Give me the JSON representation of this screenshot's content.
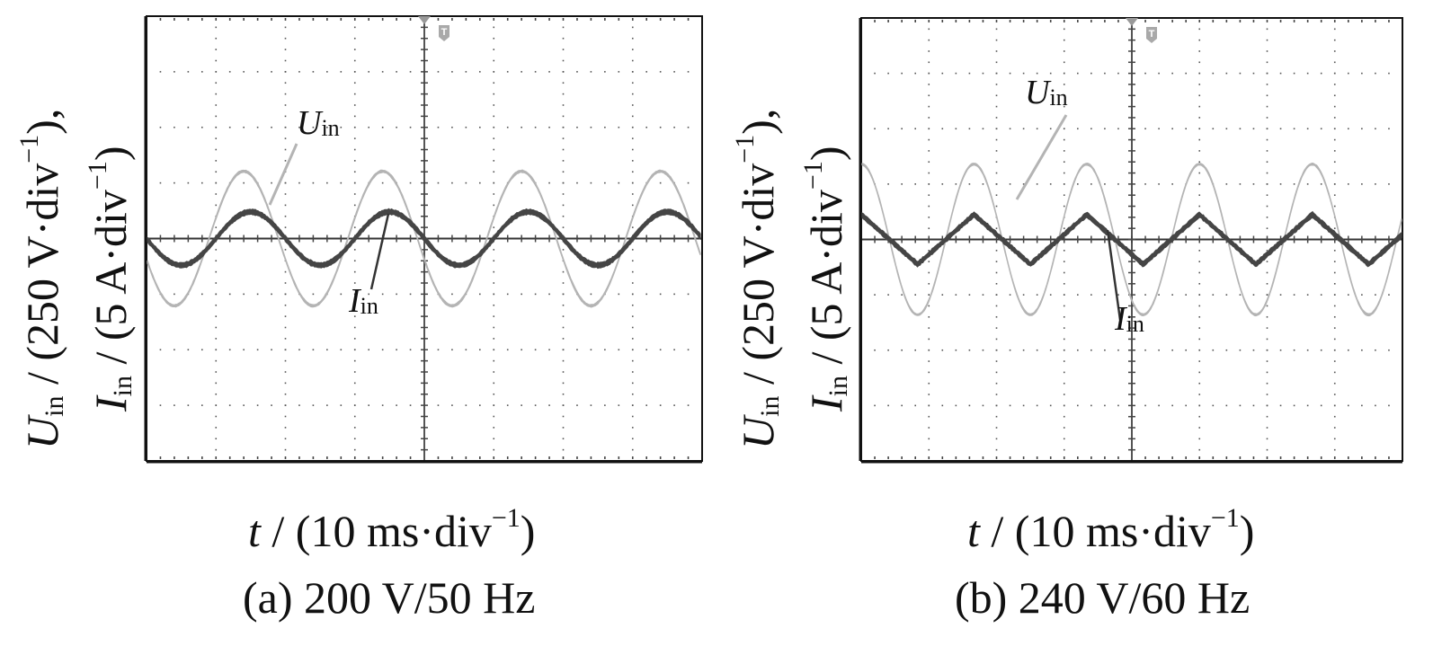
{
  "chart_data": [
    {
      "id": "a",
      "type": "line",
      "title": "",
      "caption": "(a)  200 V/50 Hz",
      "xlabel": {
        "var": "t",
        "rest": " / (10 ms·div",
        "sup": "−1",
        "close": ")"
      },
      "ylabel_1": {
        "var": "U",
        "sub": "in",
        "rest": " / (250 V·div",
        "sup": "−1",
        "close": "),",
        "close_main": ")"
      },
      "ylabel_2": {
        "var": "I",
        "sub": "in",
        "rest": " / (5 A·div",
        "sup": "−1",
        "close": ")"
      },
      "grid": true,
      "divisions": {
        "x": 8,
        "y": 8
      },
      "x_range_div": [
        -4,
        4
      ],
      "y_range_div": [
        -4,
        4
      ],
      "trigger_marker": "T",
      "series": [
        {
          "name": "Uin",
          "label_var": "U",
          "label_sub": "in",
          "color": "#b4b4b4",
          "waveform": "sine",
          "amplitude_div": 1.21,
          "frequency_hz": 50,
          "time_per_div_ms": 10,
          "phase_deg": 198,
          "noise_div": 0.05
        },
        {
          "name": "Iin",
          "label_var": "I",
          "label_sub": "in",
          "color": "#454545",
          "waveform": "sine",
          "amplitude_div": 0.48,
          "frequency_hz": 50,
          "time_per_div_ms": 10,
          "phase_deg": 180,
          "noise_div": 0.11
        }
      ]
    },
    {
      "id": "b",
      "type": "line",
      "title": "",
      "caption": "(b)  240 V/60 Hz",
      "xlabel": {
        "var": "t",
        "rest": " / (10 ms·div",
        "sup": "−1",
        "close": ")"
      },
      "ylabel_1": {
        "var": "U",
        "sub": "in",
        "rest": " / (250 V·div",
        "sup": "−1",
        "close": "),",
        "close_main": ")"
      },
      "ylabel_2": {
        "var": "I",
        "sub": "in",
        "rest": " / (5 A·div",
        "sup": "−1",
        "close": ")"
      },
      "grid": true,
      "divisions": {
        "x": 8,
        "y": 8
      },
      "x_range_div": [
        -4,
        4
      ],
      "y_range_div": [
        -4,
        4
      ],
      "trigger_marker": "T",
      "series": [
        {
          "name": "Uin",
          "label_var": "U",
          "label_sub": "in",
          "color": "#b4b4b4",
          "waveform": "sine",
          "amplitude_div": 1.36,
          "frequency_hz": 60,
          "time_per_div_ms": 10,
          "phase_deg": 90,
          "noise_div": 0.04
        },
        {
          "name": "Iin",
          "label_var": "I",
          "label_sub": "in",
          "color": "#454545",
          "waveform": "triangle",
          "amplitude_div": 0.45,
          "frequency_hz": 60,
          "time_per_div_ms": 10,
          "phase_deg": 90,
          "noise_div": 0.11
        }
      ]
    }
  ]
}
